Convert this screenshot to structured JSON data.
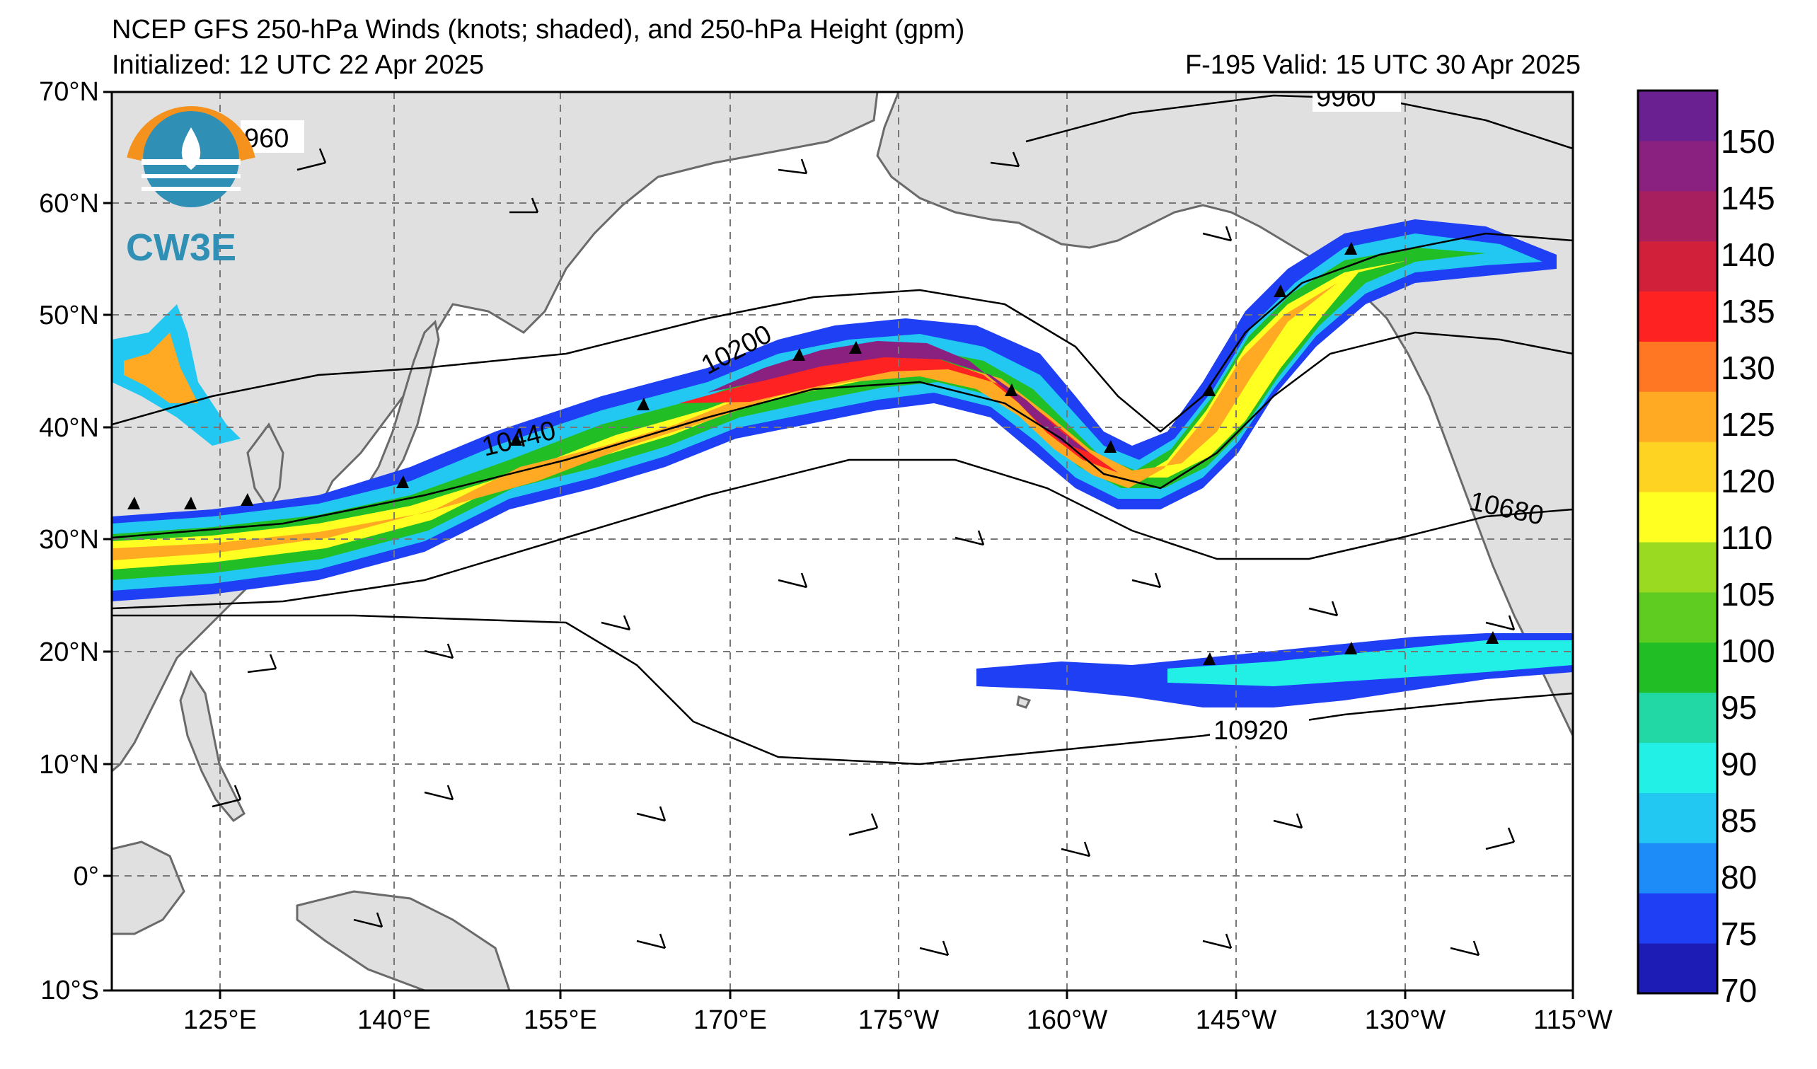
{
  "header": {
    "title": "NCEP GFS 250-hPa Winds (knots; shaded), and 250-hPa Height (gpm)",
    "initialized": "Initialized: 12 UTC 22 Apr 2025",
    "valid": "F-195  Valid: 15 UTC 30 Apr 2025"
  },
  "logo": {
    "text": "CW3E"
  },
  "map": {
    "lat_labels": [
      "70°N",
      "60°N",
      "50°N",
      "40°N",
      "30°N",
      "20°N",
      "10°N",
      "0°",
      "10°S"
    ],
    "lon_labels": [
      "125°E",
      "140°E",
      "155°E",
      "170°E",
      "175°W",
      "160°W",
      "145°W",
      "130°W",
      "115°W"
    ],
    "contour_labels": [
      "960",
      "9960",
      "10200",
      "10440",
      "10680",
      "10920"
    ],
    "land_color": "#e0e0e0",
    "grid_color": "#777777"
  },
  "colorbar": {
    "labels": [
      "70",
      "75",
      "80",
      "85",
      "90",
      "95",
      "100",
      "105",
      "110",
      "120",
      "125",
      "130",
      "135",
      "140",
      "145",
      "150"
    ],
    "colors": [
      "#1d1db5",
      "#1f3ff5",
      "#1e8cf8",
      "#22c8f2",
      "#22f0e6",
      "#22d8a4",
      "#22be25",
      "#5fcc22",
      "#9adb22",
      "#ffff22",
      "#ffd322",
      "#ffaa22",
      "#ff7722",
      "#ff2222",
      "#d0203a",
      "#a81f5f",
      "#8a2080",
      "#6a2090"
    ]
  }
}
